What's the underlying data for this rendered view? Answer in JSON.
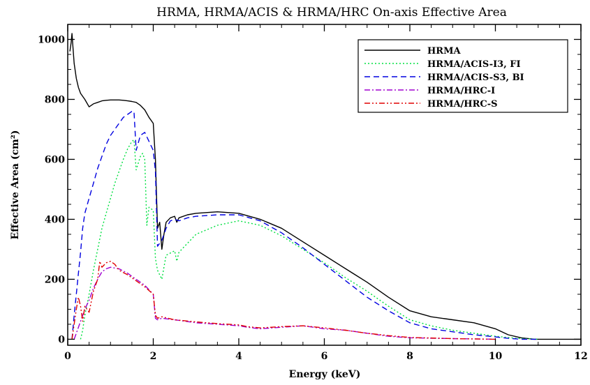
{
  "chart_data": {
    "type": "line",
    "title": "HRMA, HRMA/ACIS & HRMA/HRC On-axis Effective Area",
    "xlabel": "Energy (keV)",
    "ylabel": "Effective Area  (cm²)",
    "xlim": [
      0,
      12
    ],
    "ylim": [
      -20,
      1050
    ],
    "xticks": [
      0,
      2,
      4,
      6,
      8,
      10,
      12
    ],
    "xtick_labels": [
      "0",
      "2",
      "4",
      "6",
      "8",
      "10",
      "12"
    ],
    "yticks": [
      0,
      200,
      400,
      600,
      800,
      1000
    ],
    "ytick_labels": [
      "0",
      "200",
      "400",
      "600",
      "800",
      "1000"
    ],
    "grid": false,
    "legend_position": "top-right",
    "series": [
      {
        "name": "HRMA",
        "color": "#000000",
        "dash": "solid",
        "x": [
          0.05,
          0.08,
          0.1,
          0.12,
          0.15,
          0.2,
          0.25,
          0.3,
          0.4,
          0.5,
          0.6,
          0.7,
          0.8,
          0.9,
          1.0,
          1.1,
          1.2,
          1.3,
          1.4,
          1.5,
          1.6,
          1.7,
          1.8,
          1.9,
          2.0,
          2.05,
          2.1,
          2.15,
          2.2,
          2.25,
          2.3,
          2.4,
          2.5,
          2.55,
          2.6,
          2.8,
          3.0,
          3.5,
          4.0,
          4.5,
          5.0,
          5.5,
          6.0,
          6.5,
          7.0,
          7.5,
          8.0,
          8.5,
          9.0,
          9.5,
          10.0,
          10.3,
          10.6,
          10.9,
          11.2,
          12.0
        ],
        "y": [
          960,
          990,
          1020,
          980,
          920,
          870,
          840,
          820,
          800,
          775,
          785,
          790,
          795,
          797,
          798,
          798,
          798,
          797,
          795,
          793,
          790,
          780,
          765,
          740,
          720,
          600,
          370,
          390,
          300,
          350,
          390,
          405,
          410,
          390,
          405,
          415,
          420,
          425,
          420,
          400,
          370,
          325,
          280,
          235,
          190,
          140,
          95,
          75,
          65,
          55,
          35,
          15,
          5,
          0,
          0,
          0
        ]
      },
      {
        "name": "HRMA/ACIS-I3, FI",
        "color": "#00e040",
        "dash": "dotted",
        "x": [
          0.3,
          0.35,
          0.4,
          0.5,
          0.6,
          0.7,
          0.8,
          0.9,
          1.0,
          1.1,
          1.2,
          1.3,
          1.4,
          1.5,
          1.55,
          1.6,
          1.7,
          1.75,
          1.8,
          1.85,
          1.9,
          2.0,
          2.05,
          2.1,
          2.2,
          2.25,
          2.3,
          2.5,
          2.55,
          2.6,
          2.8,
          3.0,
          3.5,
          4.0,
          4.5,
          5.0,
          5.5,
          6.0,
          6.5,
          7.0,
          7.5,
          8.0,
          8.5,
          9.0,
          9.5,
          10.0,
          10.5,
          11.0
        ],
        "y": [
          0,
          30,
          80,
          150,
          230,
          300,
          370,
          420,
          470,
          520,
          560,
          600,
          635,
          660,
          665,
          565,
          610,
          620,
          600,
          380,
          440,
          430,
          270,
          230,
          200,
          240,
          280,
          295,
          260,
          290,
          320,
          350,
          380,
          395,
          380,
          345,
          300,
          255,
          205,
          160,
          110,
          65,
          45,
          30,
          20,
          10,
          3,
          0
        ]
      },
      {
        "name": "HRMA/ACIS-S3, BI",
        "color": "#0000e0",
        "dash": "dashed",
        "x": [
          0.1,
          0.15,
          0.2,
          0.25,
          0.3,
          0.35,
          0.4,
          0.5,
          0.6,
          0.7,
          0.8,
          0.9,
          1.0,
          1.1,
          1.2,
          1.3,
          1.4,
          1.5,
          1.55,
          1.6,
          1.7,
          1.8,
          1.9,
          2.0,
          2.05,
          2.1,
          2.2,
          2.3,
          2.4,
          2.5,
          2.6,
          2.8,
          3.0,
          3.5,
          4.0,
          4.5,
          5.0,
          5.5,
          6.0,
          6.5,
          7.0,
          7.5,
          8.0,
          8.5,
          9.0,
          9.5,
          10.0,
          10.3,
          10.6,
          11.0
        ],
        "y": [
          0,
          80,
          150,
          220,
          290,
          370,
          420,
          470,
          520,
          570,
          610,
          650,
          680,
          700,
          720,
          740,
          750,
          760,
          760,
          630,
          680,
          690,
          660,
          630,
          560,
          310,
          330,
          370,
          395,
          400,
          395,
          405,
          410,
          415,
          415,
          395,
          355,
          305,
          250,
          195,
          140,
          95,
          55,
          35,
          25,
          15,
          8,
          3,
          0,
          0
        ]
      },
      {
        "name": "HRMA/HRC-I",
        "color": "#a000d0",
        "dash": "dashdot",
        "x": [
          0.15,
          0.2,
          0.3,
          0.4,
          0.5,
          0.6,
          0.7,
          0.8,
          0.9,
          1.0,
          1.2,
          1.4,
          1.6,
          1.8,
          2.0,
          2.05,
          2.1,
          2.2,
          2.5,
          3.0,
          3.5,
          4.0,
          4.2,
          4.5,
          5.0,
          5.5,
          6.0,
          6.5,
          7.0,
          7.5,
          8.0,
          9.0,
          10.0
        ],
        "y": [
          0,
          20,
          60,
          100,
          130,
          170,
          200,
          225,
          235,
          240,
          235,
          220,
          200,
          180,
          150,
          70,
          65,
          70,
          65,
          55,
          50,
          45,
          40,
          35,
          40,
          45,
          35,
          30,
          20,
          10,
          5,
          2,
          0
        ]
      },
      {
        "name": "HRMA/HRC-S",
        "color": "#e00000",
        "dash": "dashdotdot",
        "x": [
          0.1,
          0.15,
          0.2,
          0.25,
          0.3,
          0.35,
          0.4,
          0.5,
          0.6,
          0.7,
          0.75,
          0.8,
          0.9,
          1.0,
          1.1,
          1.2,
          1.4,
          1.6,
          1.8,
          2.0,
          2.05,
          2.1,
          2.2,
          2.5,
          3.0,
          3.5,
          4.0,
          4.2,
          4.5,
          5.0,
          5.5,
          6.0,
          6.5,
          7.0,
          7.5,
          8.0,
          9.0,
          10.0
        ],
        "y": [
          0,
          50,
          100,
          140,
          110,
          60,
          110,
          90,
          160,
          200,
          260,
          240,
          255,
          260,
          250,
          230,
          215,
          195,
          175,
          150,
          80,
          70,
          75,
          65,
          58,
          52,
          48,
          42,
          38,
          42,
          45,
          38,
          30,
          20,
          12,
          6,
          2,
          0
        ]
      }
    ]
  }
}
